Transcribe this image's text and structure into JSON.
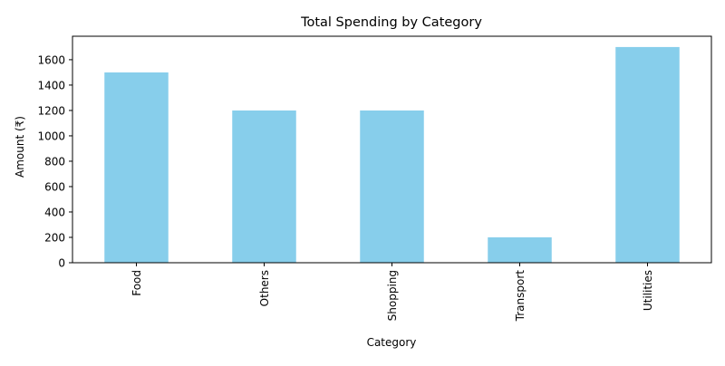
{
  "chart_data": {
    "type": "bar",
    "title": "Total Spending by Category",
    "xlabel": "Category",
    "ylabel": "Amount (₹)",
    "categories": [
      "Food",
      "Others",
      "Shopping",
      "Transport",
      "Utilities"
    ],
    "values": [
      1500,
      1200,
      1200,
      200,
      1700
    ],
    "ylim": [
      0,
      1785
    ],
    "yticks": [
      0,
      200,
      400,
      600,
      800,
      1000,
      1200,
      1400,
      1600
    ],
    "grid": false,
    "bar_color": "#87ceeb",
    "xtick_rotation": "vertical"
  }
}
